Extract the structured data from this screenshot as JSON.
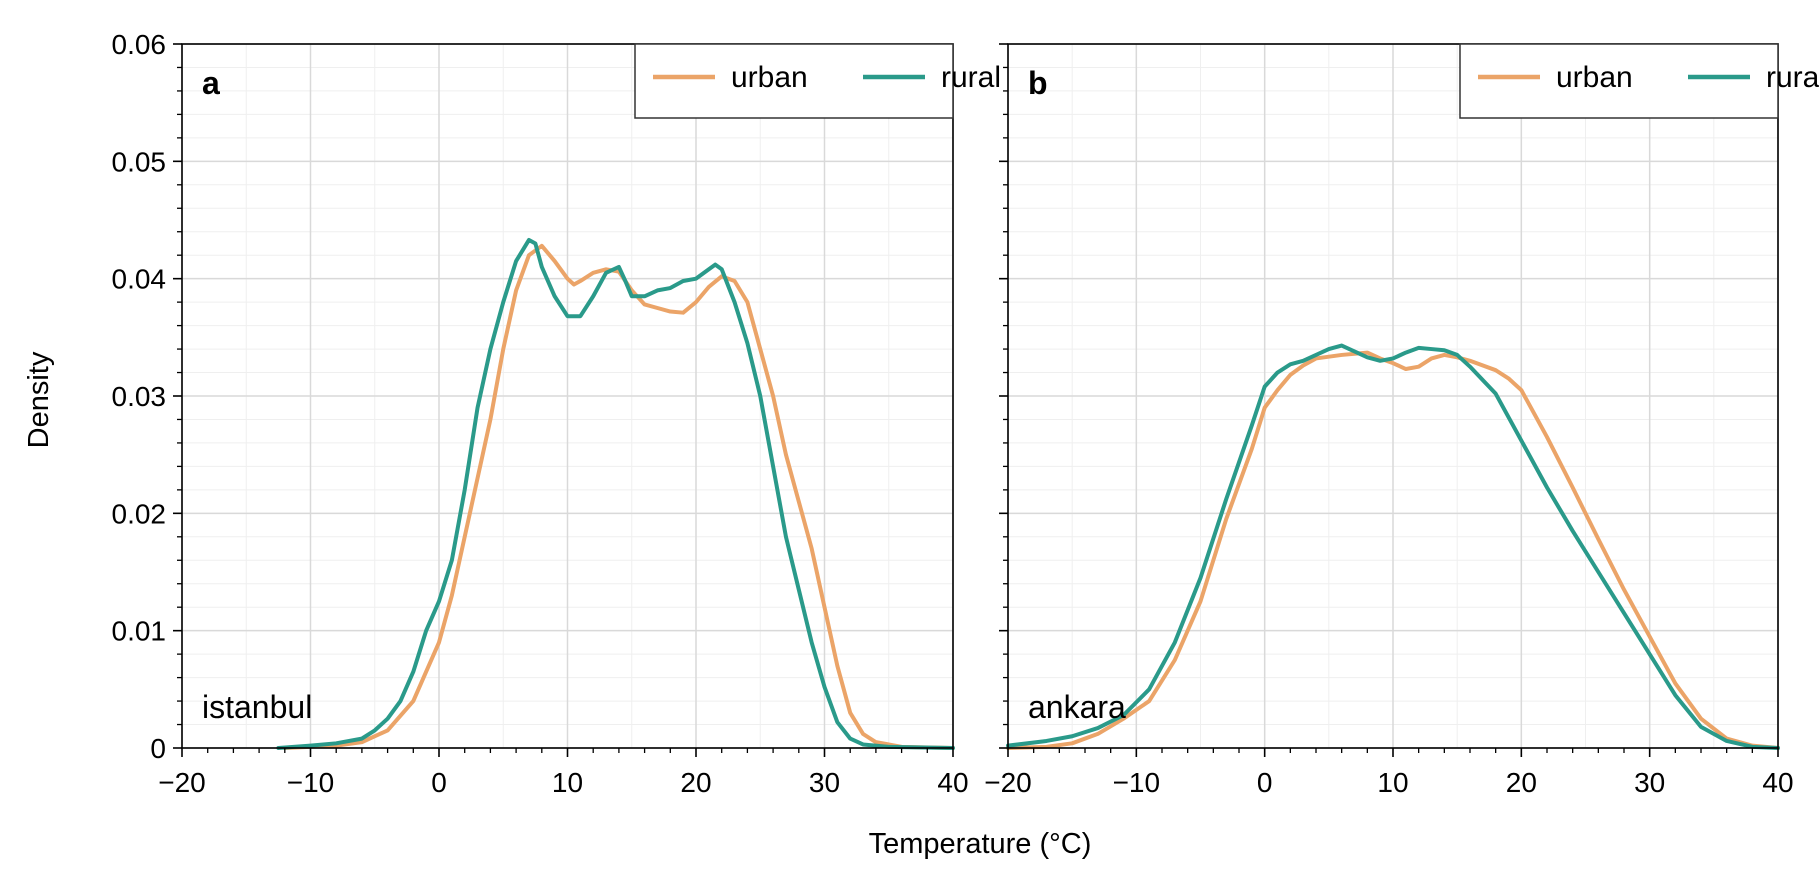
{
  "figure": {
    "xlabel": "Temperature (°C)",
    "ylabel": "Density"
  },
  "colors": {
    "urban": "#eba468",
    "rural": "#2a9a8a",
    "axes": "#000000",
    "grid_major": "#d9d9d9",
    "grid_minor": "#efefef"
  },
  "chart_data": [
    {
      "type": "line",
      "panel_letter": "a",
      "panel_title": "istanbul",
      "xlim": [
        -20,
        40
      ],
      "ylim": [
        0,
        0.06
      ],
      "x_ticks": [
        -20,
        -10,
        0,
        10,
        20,
        30,
        40
      ],
      "x_tick_labels": [
        "−20",
        "−10",
        "0",
        "10",
        "20",
        "30",
        "40"
      ],
      "y_ticks": [
        0,
        0.01,
        0.02,
        0.03,
        0.04,
        0.05,
        0.06
      ],
      "y_tick_labels": [
        "0",
        "0.01",
        "0.02",
        "0.03",
        "0.04",
        "0.05",
        "0.06"
      ],
      "grid": true,
      "legend_position": "top-right",
      "series": [
        {
          "name": "urban",
          "color_key": "urban",
          "points": [
            [
              -12,
              0
            ],
            [
              -8,
              0.0002
            ],
            [
              -6,
              0.0005
            ],
            [
              -4,
              0.0015
            ],
            [
              -2,
              0.004
            ],
            [
              -1,
              0.0065
            ],
            [
              0,
              0.009
            ],
            [
              1,
              0.013
            ],
            [
              2,
              0.018
            ],
            [
              3,
              0.023
            ],
            [
              4,
              0.028
            ],
            [
              5,
              0.034
            ],
            [
              6,
              0.039
            ],
            [
              7,
              0.042
            ],
            [
              8,
              0.0428
            ],
            [
              9,
              0.0415
            ],
            [
              10,
              0.04
            ],
            [
              10.5,
              0.0395
            ],
            [
              11,
              0.0398
            ],
            [
              12,
              0.0405
            ],
            [
              13,
              0.0408
            ],
            [
              14,
              0.0406
            ],
            [
              15,
              0.039
            ],
            [
              16,
              0.0378
            ],
            [
              17,
              0.0375
            ],
            [
              18,
              0.0372
            ],
            [
              19,
              0.0371
            ],
            [
              20,
              0.038
            ],
            [
              21,
              0.0393
            ],
            [
              22,
              0.0402
            ],
            [
              23,
              0.0398
            ],
            [
              24,
              0.038
            ],
            [
              25,
              0.034
            ],
            [
              26,
              0.03
            ],
            [
              27,
              0.025
            ],
            [
              28,
              0.021
            ],
            [
              29,
              0.017
            ],
            [
              30,
              0.012
            ],
            [
              31,
              0.007
            ],
            [
              32,
              0.003
            ],
            [
              33,
              0.0012
            ],
            [
              34,
              0.0005
            ],
            [
              36,
              0.0001
            ],
            [
              40,
              0
            ]
          ]
        },
        {
          "name": "rural",
          "color_key": "rural",
          "points": [
            [
              -12.5,
              0
            ],
            [
              -10,
              0.0002
            ],
            [
              -8,
              0.0004
            ],
            [
              -6,
              0.0008
            ],
            [
              -5,
              0.0015
            ],
            [
              -4,
              0.0025
            ],
            [
              -3,
              0.004
            ],
            [
              -2,
              0.0065
            ],
            [
              -1,
              0.01
            ],
            [
              0,
              0.0125
            ],
            [
              1,
              0.016
            ],
            [
              2,
              0.022
            ],
            [
              3,
              0.029
            ],
            [
              4,
              0.034
            ],
            [
              5,
              0.038
            ],
            [
              6,
              0.0415
            ],
            [
              7,
              0.0433
            ],
            [
              7.5,
              0.043
            ],
            [
              8,
              0.041
            ],
            [
              9,
              0.0385
            ],
            [
              10,
              0.0368
            ],
            [
              11,
              0.0368
            ],
            [
              12,
              0.0385
            ],
            [
              13,
              0.0405
            ],
            [
              14,
              0.041
            ],
            [
              14.5,
              0.0398
            ],
            [
              15,
              0.0385
            ],
            [
              16,
              0.0385
            ],
            [
              17,
              0.039
            ],
            [
              18,
              0.0392
            ],
            [
              19,
              0.0398
            ],
            [
              20,
              0.04
            ],
            [
              21,
              0.0408
            ],
            [
              21.5,
              0.0412
            ],
            [
              22,
              0.0408
            ],
            [
              23,
              0.038
            ],
            [
              24,
              0.0345
            ],
            [
              25,
              0.03
            ],
            [
              26,
              0.024
            ],
            [
              27,
              0.018
            ],
            [
              28,
              0.0135
            ],
            [
              29,
              0.009
            ],
            [
              30,
              0.0052
            ],
            [
              31,
              0.0022
            ],
            [
              32,
              0.0008
            ],
            [
              33,
              0.0003
            ],
            [
              35,
              0.0001
            ],
            [
              40,
              0
            ]
          ]
        }
      ]
    },
    {
      "type": "line",
      "panel_letter": "b",
      "panel_title": "ankara",
      "xlim": [
        -20,
        40
      ],
      "ylim": [
        0,
        0.06
      ],
      "x_ticks": [
        -20,
        -10,
        0,
        10,
        20,
        30,
        40
      ],
      "x_tick_labels": [
        "−20",
        "−10",
        "0",
        "10",
        "20",
        "30",
        "40"
      ],
      "y_ticks": [
        0,
        0.01,
        0.02,
        0.03,
        0.04,
        0.05,
        0.06
      ],
      "y_tick_labels": [],
      "grid": true,
      "legend_position": "top-right",
      "series": [
        {
          "name": "urban",
          "color_key": "urban",
          "points": [
            [
              -20,
              0
            ],
            [
              -17,
              0.0001
            ],
            [
              -15,
              0.0004
            ],
            [
              -13,
              0.0012
            ],
            [
              -11,
              0.0025
            ],
            [
              -9,
              0.004
            ],
            [
              -7,
              0.0075
            ],
            [
              -5,
              0.0125
            ],
            [
              -3,
              0.0195
            ],
            [
              -1,
              0.0255
            ],
            [
              0,
              0.029
            ],
            [
              1,
              0.0305
            ],
            [
              2,
              0.0318
            ],
            [
              3,
              0.0326
            ],
            [
              4,
              0.0332
            ],
            [
              6,
              0.0335
            ],
            [
              8,
              0.0337
            ],
            [
              9,
              0.0332
            ],
            [
              10,
              0.0328
            ],
            [
              11,
              0.0323
            ],
            [
              12,
              0.0325
            ],
            [
              13,
              0.0332
            ],
            [
              14,
              0.0335
            ],
            [
              15,
              0.0333
            ],
            [
              16,
              0.033
            ],
            [
              18,
              0.0322
            ],
            [
              19,
              0.0315
            ],
            [
              20,
              0.0305
            ],
            [
              21,
              0.0285
            ],
            [
              22,
              0.0265
            ],
            [
              24,
              0.0222
            ],
            [
              26,
              0.0178
            ],
            [
              28,
              0.0135
            ],
            [
              30,
              0.0095
            ],
            [
              32,
              0.0055
            ],
            [
              34,
              0.0025
            ],
            [
              36,
              0.0008
            ],
            [
              38,
              0.0002
            ],
            [
              40,
              0
            ]
          ]
        },
        {
          "name": "rural",
          "color_key": "rural",
          "points": [
            [
              -20,
              0.0002
            ],
            [
              -17,
              0.0006
            ],
            [
              -15,
              0.001
            ],
            [
              -13,
              0.0017
            ],
            [
              -11,
              0.0028
            ],
            [
              -9,
              0.005
            ],
            [
              -7,
              0.009
            ],
            [
              -5,
              0.0145
            ],
            [
              -3,
              0.0212
            ],
            [
              -1,
              0.0275
            ],
            [
              0,
              0.0308
            ],
            [
              1,
              0.032
            ],
            [
              2,
              0.0327
            ],
            [
              3,
              0.033
            ],
            [
              4,
              0.0335
            ],
            [
              5,
              0.034
            ],
            [
              6,
              0.0343
            ],
            [
              7,
              0.0338
            ],
            [
              8,
              0.0333
            ],
            [
              9,
              0.033
            ],
            [
              10,
              0.0332
            ],
            [
              11,
              0.0337
            ],
            [
              12,
              0.0341
            ],
            [
              13,
              0.034
            ],
            [
              14,
              0.0339
            ],
            [
              15,
              0.0335
            ],
            [
              16,
              0.0325
            ],
            [
              18,
              0.0302
            ],
            [
              20,
              0.0262
            ],
            [
              22,
              0.0222
            ],
            [
              24,
              0.0185
            ],
            [
              26,
              0.015
            ],
            [
              28,
              0.0115
            ],
            [
              30,
              0.008
            ],
            [
              32,
              0.0045
            ],
            [
              34,
              0.0018
            ],
            [
              36,
              0.0006
            ],
            [
              38,
              0.0001
            ],
            [
              40,
              0
            ]
          ]
        }
      ]
    }
  ]
}
